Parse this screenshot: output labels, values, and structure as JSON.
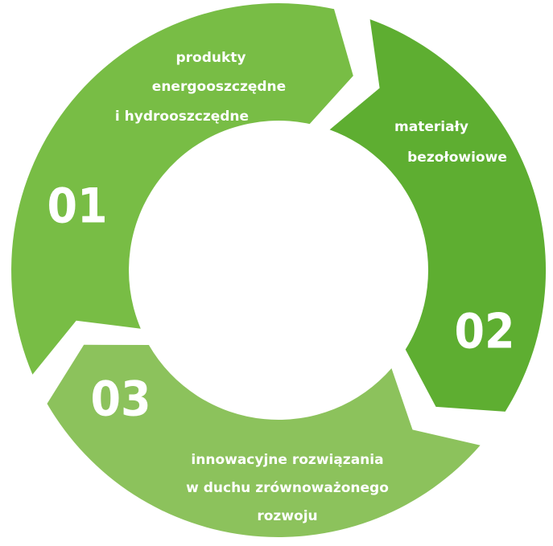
{
  "segments": [
    {
      "number": "01",
      "lines": [
        "produkty",
        "energooszczędne",
        "i hydrooszczędne"
      ]
    },
    {
      "number": "02",
      "lines": [
        "materiały",
        "bezołowiowe"
      ]
    },
    {
      "number": "03",
      "lines": [
        "innowacyjne rozwiązania",
        "w duchu zrównoważonego",
        "rozwoju"
      ]
    }
  ]
}
